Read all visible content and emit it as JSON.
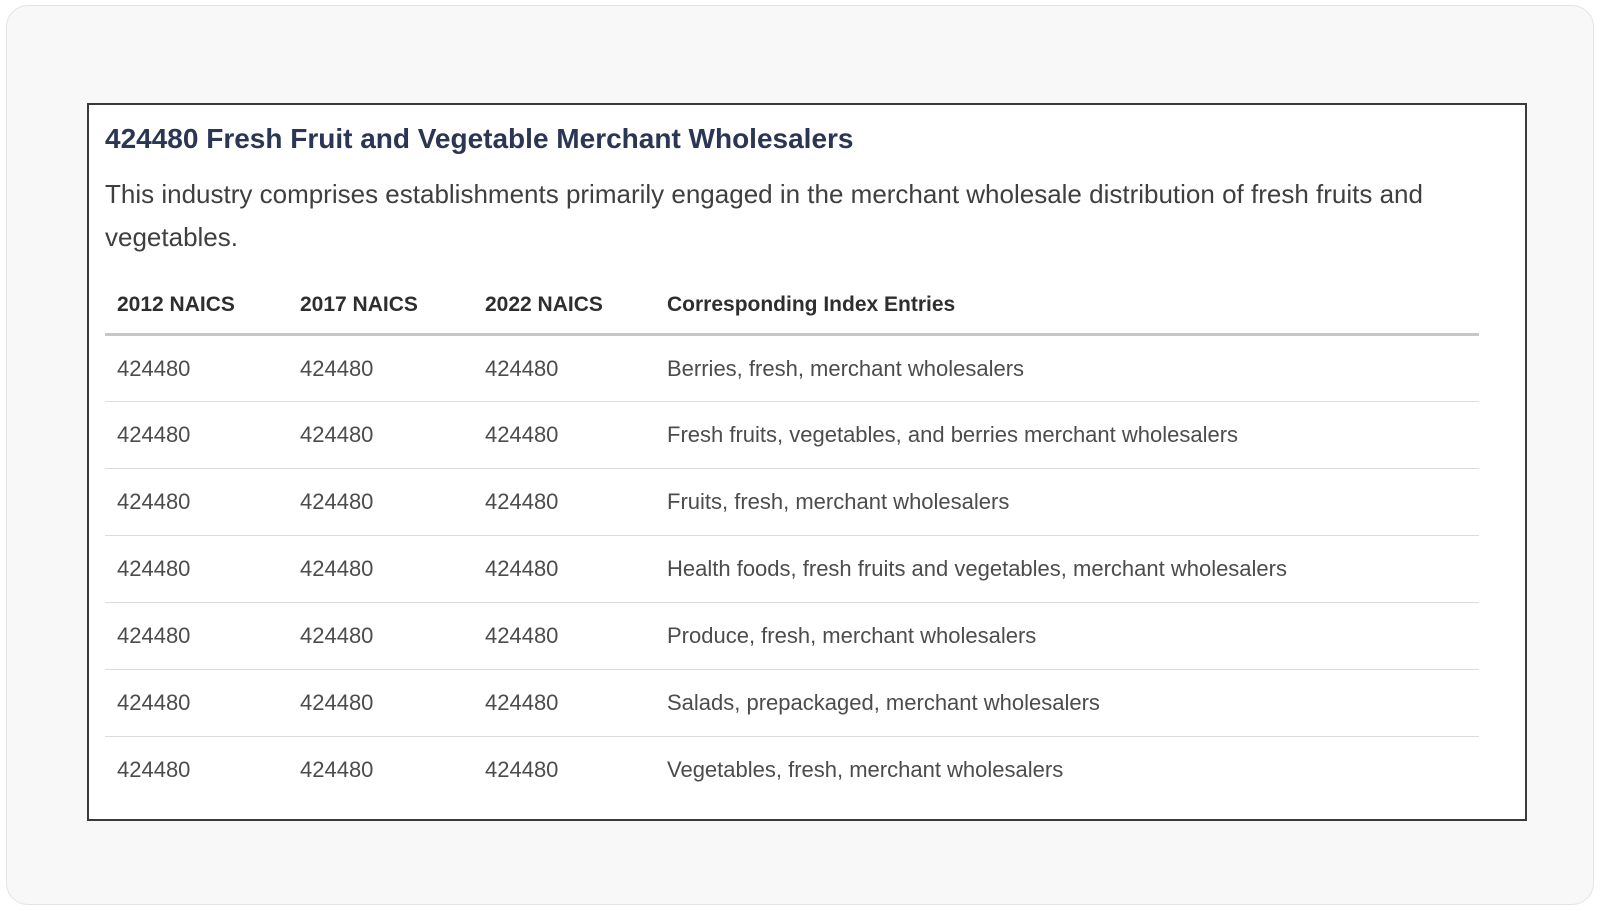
{
  "page": {
    "title": "424480 Fresh Fruit and Vegetable Merchant Wholesalers",
    "description": "This industry comprises establishments primarily engaged in the merchant wholesale distribution of fresh fruits and vegetables."
  },
  "table": {
    "headers": [
      "2012 NAICS",
      "2017 NAICS",
      "2022 NAICS",
      "Corresponding Index Entries"
    ],
    "rows": [
      {
        "naics_2012": "424480",
        "naics_2017": "424480",
        "naics_2022": "424480",
        "index_entry": "Berries, fresh, merchant wholesalers"
      },
      {
        "naics_2012": "424480",
        "naics_2017": "424480",
        "naics_2022": "424480",
        "index_entry": "Fresh fruits, vegetables, and berries merchant wholesalers"
      },
      {
        "naics_2012": "424480",
        "naics_2017": "424480",
        "naics_2022": "424480",
        "index_entry": "Fruits, fresh, merchant wholesalers"
      },
      {
        "naics_2012": "424480",
        "naics_2017": "424480",
        "naics_2022": "424480",
        "index_entry": "Health foods, fresh fruits and vegetables, merchant wholesalers"
      },
      {
        "naics_2012": "424480",
        "naics_2017": "424480",
        "naics_2022": "424480",
        "index_entry": "Produce, fresh, merchant wholesalers"
      },
      {
        "naics_2012": "424480",
        "naics_2017": "424480",
        "naics_2022": "424480",
        "index_entry": "Salads, prepackaged, merchant wholesalers"
      },
      {
        "naics_2012": "424480",
        "naics_2017": "424480",
        "naics_2022": "424480",
        "index_entry": "Vegetables, fresh, merchant wholesalers"
      }
    ]
  },
  "colors": {
    "title_text": "#2b3554",
    "body_text": "#3f3f3f",
    "header_text": "#2e2e2e",
    "cell_text": "#4c4c4c",
    "card_border": "#3a3a3a",
    "panel_background": "#f8f8f9",
    "header_divider": "#c7c7c8",
    "row_divider": "#dcdcdc"
  }
}
